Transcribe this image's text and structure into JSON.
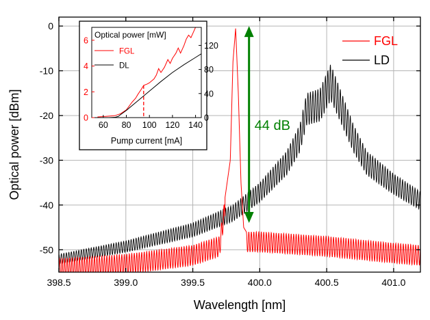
{
  "chart_data": {
    "type": "line",
    "xlabel": "Wavelength [nm]",
    "ylabel": "Optical power [dBm]",
    "xlim": [
      398.5,
      401.2
    ],
    "ylim": [
      -55,
      2
    ],
    "xticks": [
      398.5,
      399.0,
      399.5,
      400.0,
      400.5,
      401.0
    ],
    "xtick_labels": [
      "398.5",
      "399.0",
      "399.5",
      "400.0",
      "400.5",
      "401.0"
    ],
    "yticks": [
      0,
      -10,
      -20,
      -30,
      -40,
      -50
    ],
    "ytick_labels": [
      "0",
      "-10",
      "-20",
      "-30",
      "-40",
      "-50"
    ],
    "grid": true,
    "legend_position": "top-right",
    "series": [
      {
        "name": "FGL",
        "color": "#ff0000",
        "description_points": {
          "x": [
            398.5,
            399.0,
            399.5,
            399.7,
            399.78,
            399.8,
            399.82,
            399.84,
            399.86,
            399.88,
            399.9,
            400.0,
            400.5,
            401.0,
            401.2
          ],
          "y": [
            -52,
            -51,
            -49,
            -47,
            -30,
            -8,
            -0.5,
            -15,
            -35,
            -45,
            -46,
            -46,
            -47,
            -48.5,
            -49
          ]
        }
      },
      {
        "name": "LD",
        "color": "#000000",
        "description_points": {
          "x": [
            398.5,
            399.0,
            399.5,
            399.8,
            400.0,
            400.2,
            400.3,
            400.35,
            400.45,
            400.53,
            400.6,
            400.7,
            400.8,
            401.0,
            401.2
          ],
          "y": [
            -51,
            -48,
            -44,
            -40,
            -35,
            -28,
            -22,
            -15,
            -14,
            -8.5,
            -14,
            -22,
            -28,
            -33,
            -37
          ]
        }
      }
    ],
    "annotation": {
      "text": "44 dB",
      "color": "#008000",
      "x": 399.92,
      "y_top": 0,
      "y_bottom": -44
    },
    "inset": {
      "title": "Optical power [mW]",
      "xlabel": "Pump current [mA]",
      "xlim": [
        50,
        145
      ],
      "xticks": [
        60,
        80,
        100,
        120,
        140
      ],
      "xtick_labels": [
        "60",
        "80",
        "100",
        "120",
        "140"
      ],
      "left_ylim": [
        0,
        7
      ],
      "left_yticks": [
        0,
        2,
        4,
        6
      ],
      "left_ytick_labels": [
        "0",
        "2",
        "4",
        "6"
      ],
      "left_color": "#ff0000",
      "right_ylim": [
        0,
        150
      ],
      "right_yticks": [
        0,
        40,
        80,
        120
      ],
      "right_ytick_labels": [
        "0",
        "40",
        "80",
        "120"
      ],
      "right_color": "#000000",
      "marker_x": 95,
      "series": [
        {
          "name": "FGL",
          "axis": "left",
          "color": "#ff0000",
          "x": [
            55,
            60,
            70,
            75,
            80,
            85,
            88,
            90,
            93,
            95,
            98,
            100,
            104,
            106,
            108,
            110,
            113,
            116,
            118,
            120,
            123,
            125,
            127,
            130,
            132,
            134,
            136,
            138,
            140
          ],
          "y": [
            0.05,
            0.08,
            0.15,
            0.3,
            0.6,
            1.2,
            1.5,
            1.8,
            2.2,
            2.5,
            2.6,
            2.7,
            3.0,
            3.3,
            3.8,
            3.5,
            3.9,
            4.5,
            4.2,
            4.6,
            5.0,
            5.4,
            5.0,
            5.6,
            6.1,
            6.4,
            6.2,
            6.6,
            7.0
          ]
        },
        {
          "name": "DL",
          "axis": "right",
          "color": "#000000",
          "x": [
            55,
            60,
            65,
            70,
            73,
            75,
            80,
            90,
            100,
            110,
            120,
            130,
            140,
            145
          ],
          "y": [
            0,
            0,
            0,
            0.5,
            2,
            5,
            12,
            28,
            44,
            60,
            75,
            88,
            100,
            106
          ]
        }
      ]
    }
  }
}
